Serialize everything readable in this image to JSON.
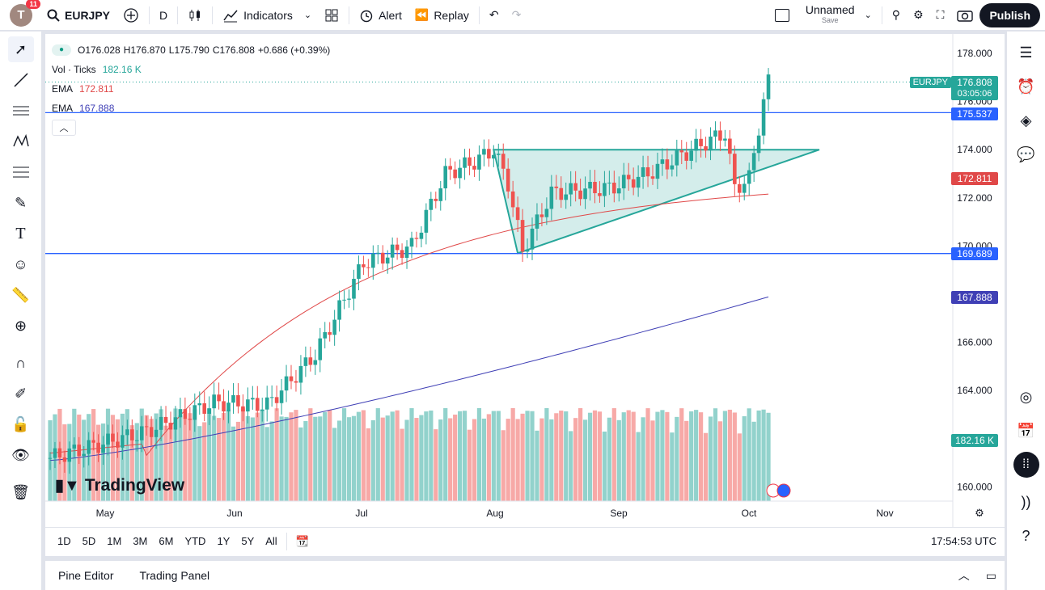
{
  "topbar": {
    "avatar_letter": "T",
    "notifications": "11",
    "symbol": "EURJPY",
    "interval": "D",
    "indicators_label": "Indicators",
    "alert_label": "Alert",
    "replay_label": "Replay",
    "layout_name": "Unnamed",
    "layout_sub": "Save",
    "publish_label": "Publish"
  },
  "legend": {
    "open": "O176.028",
    "high": "H176.870",
    "low": "L175.790",
    "close": "C176.808",
    "change": "+0.686 (+0.39%)",
    "vol_label": "Vol · Ticks",
    "vol_value": "182.16 K",
    "ema1_label": "EMA",
    "ema1_value": "172.811",
    "ema2_label": "EMA",
    "ema2_value": "167.888"
  },
  "price_axis": {
    "ticks": [
      "178.000",
      "176.000",
      "174.000",
      "172.000",
      "170.000",
      "166.000",
      "164.000",
      "160.000"
    ],
    "symbol_tag": "EURJPY",
    "last_price": "176.808",
    "countdown": "03:05:06",
    "level_upper": "175.537",
    "ema1_tag": "172.811",
    "level_lower": "169.689",
    "ema2_tag": "167.888",
    "volume_tag": "182.16 K"
  },
  "time_axis": {
    "labels": [
      "May",
      "Jun",
      "Jul",
      "Aug",
      "Sep",
      "Oct",
      "Nov"
    ]
  },
  "watermark": "TradingView",
  "bottombar": {
    "timeframes": [
      "1D",
      "5D",
      "1M",
      "3M",
      "6M",
      "YTD",
      "1Y",
      "5Y",
      "All"
    ],
    "clock": "17:54:53 UTC"
  },
  "panels": {
    "pine_editor": "Pine Editor",
    "trading_panel": "Trading Panel"
  },
  "colors": {
    "up": "#26a69a",
    "down": "#ef5350",
    "ema_fast": "#e04848",
    "ema_slow": "#3f3fb5",
    "hline": "#2962ff",
    "triangle": "#26a69a"
  },
  "chart_data": {
    "type": "candlestick",
    "symbol": "EURJPY",
    "interval": "D",
    "horizontal_levels": [
      175.537,
      169.689
    ],
    "ema_fast_last": 172.811,
    "ema_slow_last": 167.888,
    "last": {
      "open": 176.028,
      "high": 176.87,
      "low": 175.79,
      "close": 176.808
    }
  }
}
